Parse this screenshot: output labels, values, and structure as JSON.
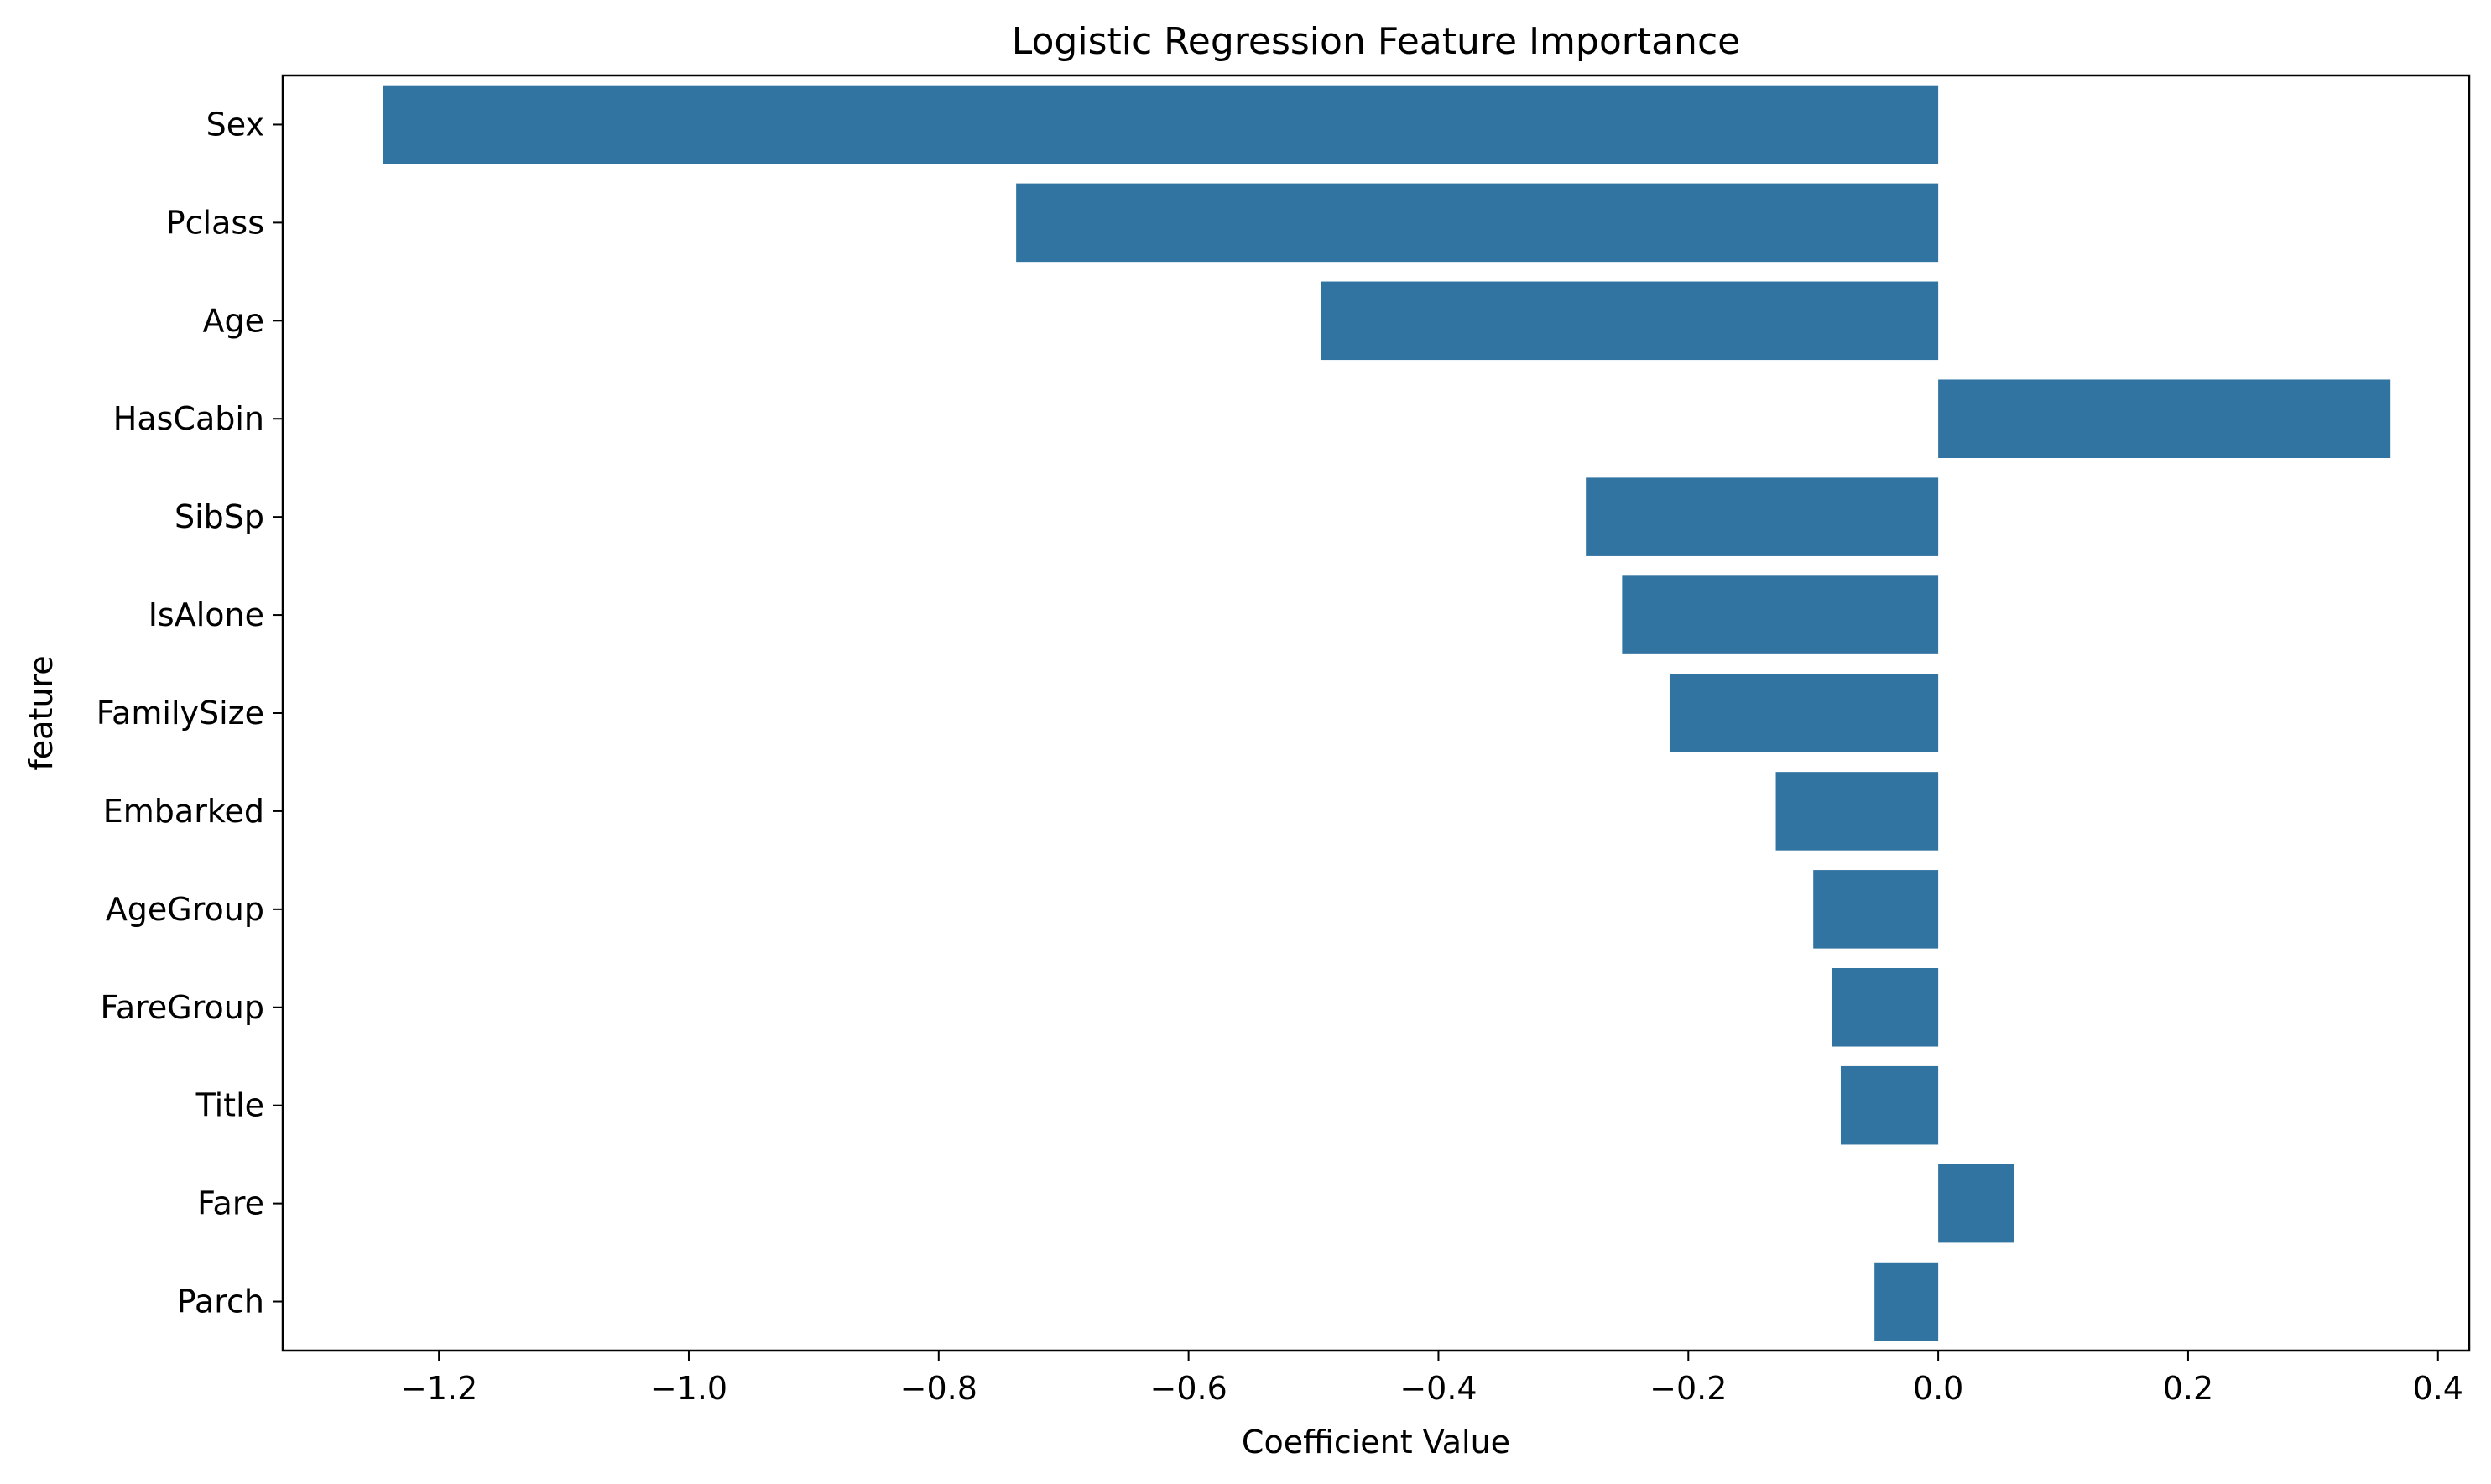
{
  "chart_data": {
    "type": "bar",
    "orientation": "horizontal",
    "title": "Logistic Regression Feature Importance",
    "xlabel": "Coefficient Value",
    "ylabel": "feature",
    "xlim": [
      -1.325,
      0.425
    ],
    "xticks": [
      -1.2,
      -1.0,
      -0.8,
      -0.6,
      -0.4,
      -0.2,
      0.0,
      0.2,
      0.4
    ],
    "xtick_labels": [
      "−1.2",
      "−1.0",
      "−0.8",
      "−0.6",
      "−0.4",
      "−0.2",
      "0.0",
      "0.2",
      "0.4"
    ],
    "categories": [
      "Sex",
      "Pclass",
      "Age",
      "HasCabin",
      "SibSp",
      "IsAlone",
      "FamilySize",
      "Embarked",
      "AgeGroup",
      "FareGroup",
      "Title",
      "Fare",
      "Parch"
    ],
    "values": [
      -1.245,
      -0.738,
      -0.494,
      0.362,
      -0.282,
      -0.253,
      -0.215,
      -0.13,
      -0.1,
      -0.085,
      -0.078,
      0.061,
      -0.051
    ],
    "bar_color": "#3274a1",
    "grid": false,
    "legend": false
  }
}
